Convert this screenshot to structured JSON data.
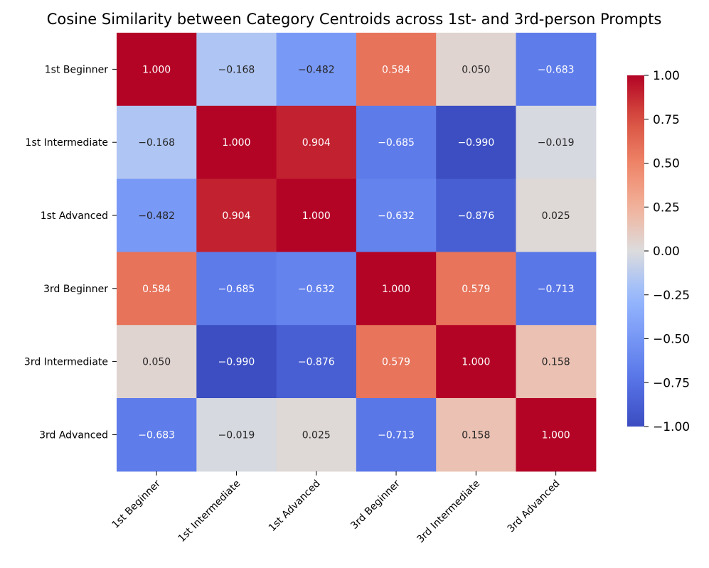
{
  "chart_data": {
    "type": "heatmap",
    "title": "Cosine Similarity between Category Centroids across 1st- and 3rd-person Prompts",
    "row_labels": [
      "1st Beginner",
      "1st Intermediate",
      "1st Advanced",
      "3rd Beginner",
      "3rd Intermediate",
      "3rd Advanced"
    ],
    "col_labels": [
      "1st Beginner",
      "1st Intermediate",
      "1st Advanced",
      "3rd Beginner",
      "3rd Intermediate",
      "3rd Advanced"
    ],
    "values": [
      [
        1.0,
        -0.168,
        -0.482,
        0.584,
        0.05,
        -0.683
      ],
      [
        -0.168,
        1.0,
        0.904,
        -0.685,
        -0.99,
        -0.019
      ],
      [
        -0.482,
        0.904,
        1.0,
        -0.632,
        -0.876,
        0.025
      ],
      [
        0.584,
        -0.685,
        -0.632,
        1.0,
        0.579,
        -0.713
      ],
      [
        0.05,
        -0.99,
        -0.876,
        0.579,
        1.0,
        0.158
      ],
      [
        -0.683,
        -0.019,
        0.025,
        -0.713,
        0.158,
        1.0
      ]
    ],
    "value_format": "0.000",
    "colormap": "coolwarm",
    "vmin": -1.0,
    "vmax": 1.0,
    "colorbar_ticks": [
      "1.00",
      "0.75",
      "0.50",
      "0.25",
      "0.00",
      "−0.25",
      "−0.50",
      "−0.75",
      "−1.00"
    ],
    "colorbar_tick_values": [
      1.0,
      0.75,
      0.5,
      0.25,
      0.0,
      -0.25,
      -0.5,
      -0.75,
      -1.0
    ],
    "colors": {
      "low": "#3b4cc0",
      "mid": "#dddddd",
      "high": "#b40426"
    }
  }
}
